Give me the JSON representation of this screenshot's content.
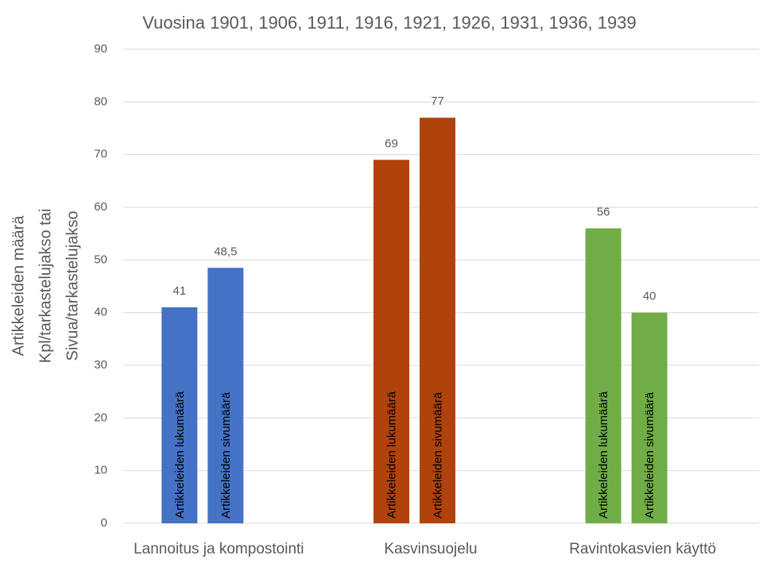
{
  "chart_data": {
    "type": "bar",
    "title": "Vuosina 1901, 1906, 1911, 1916, 1921, 1926, 1931, 1936, 1939",
    "ylabel": [
      "Artikkeleiden määrä",
      "Kpl/tarkastelujakso tai",
      "Sivua/tarkastelujakso"
    ],
    "categories": [
      "Lannoitus ja kompostointi",
      "Kasvinsuojelu",
      "Ravintokasvien käyttö"
    ],
    "colors": [
      "#4472c4",
      "#b0430b",
      "#70ad47"
    ],
    "series": [
      {
        "name": "Artikkeleiden lukumäärä",
        "values": [
          41,
          69,
          56
        ]
      },
      {
        "name": "Artikkeleiden sivumäärä",
        "values": [
          48.5,
          77,
          40
        ],
        "value_labels": [
          "48,5",
          "77",
          "40"
        ]
      }
    ],
    "ylim": [
      0,
      90
    ],
    "yticks": [
      0,
      10,
      20,
      30,
      40,
      50,
      60,
      70,
      80,
      90
    ],
    "grid": true
  }
}
